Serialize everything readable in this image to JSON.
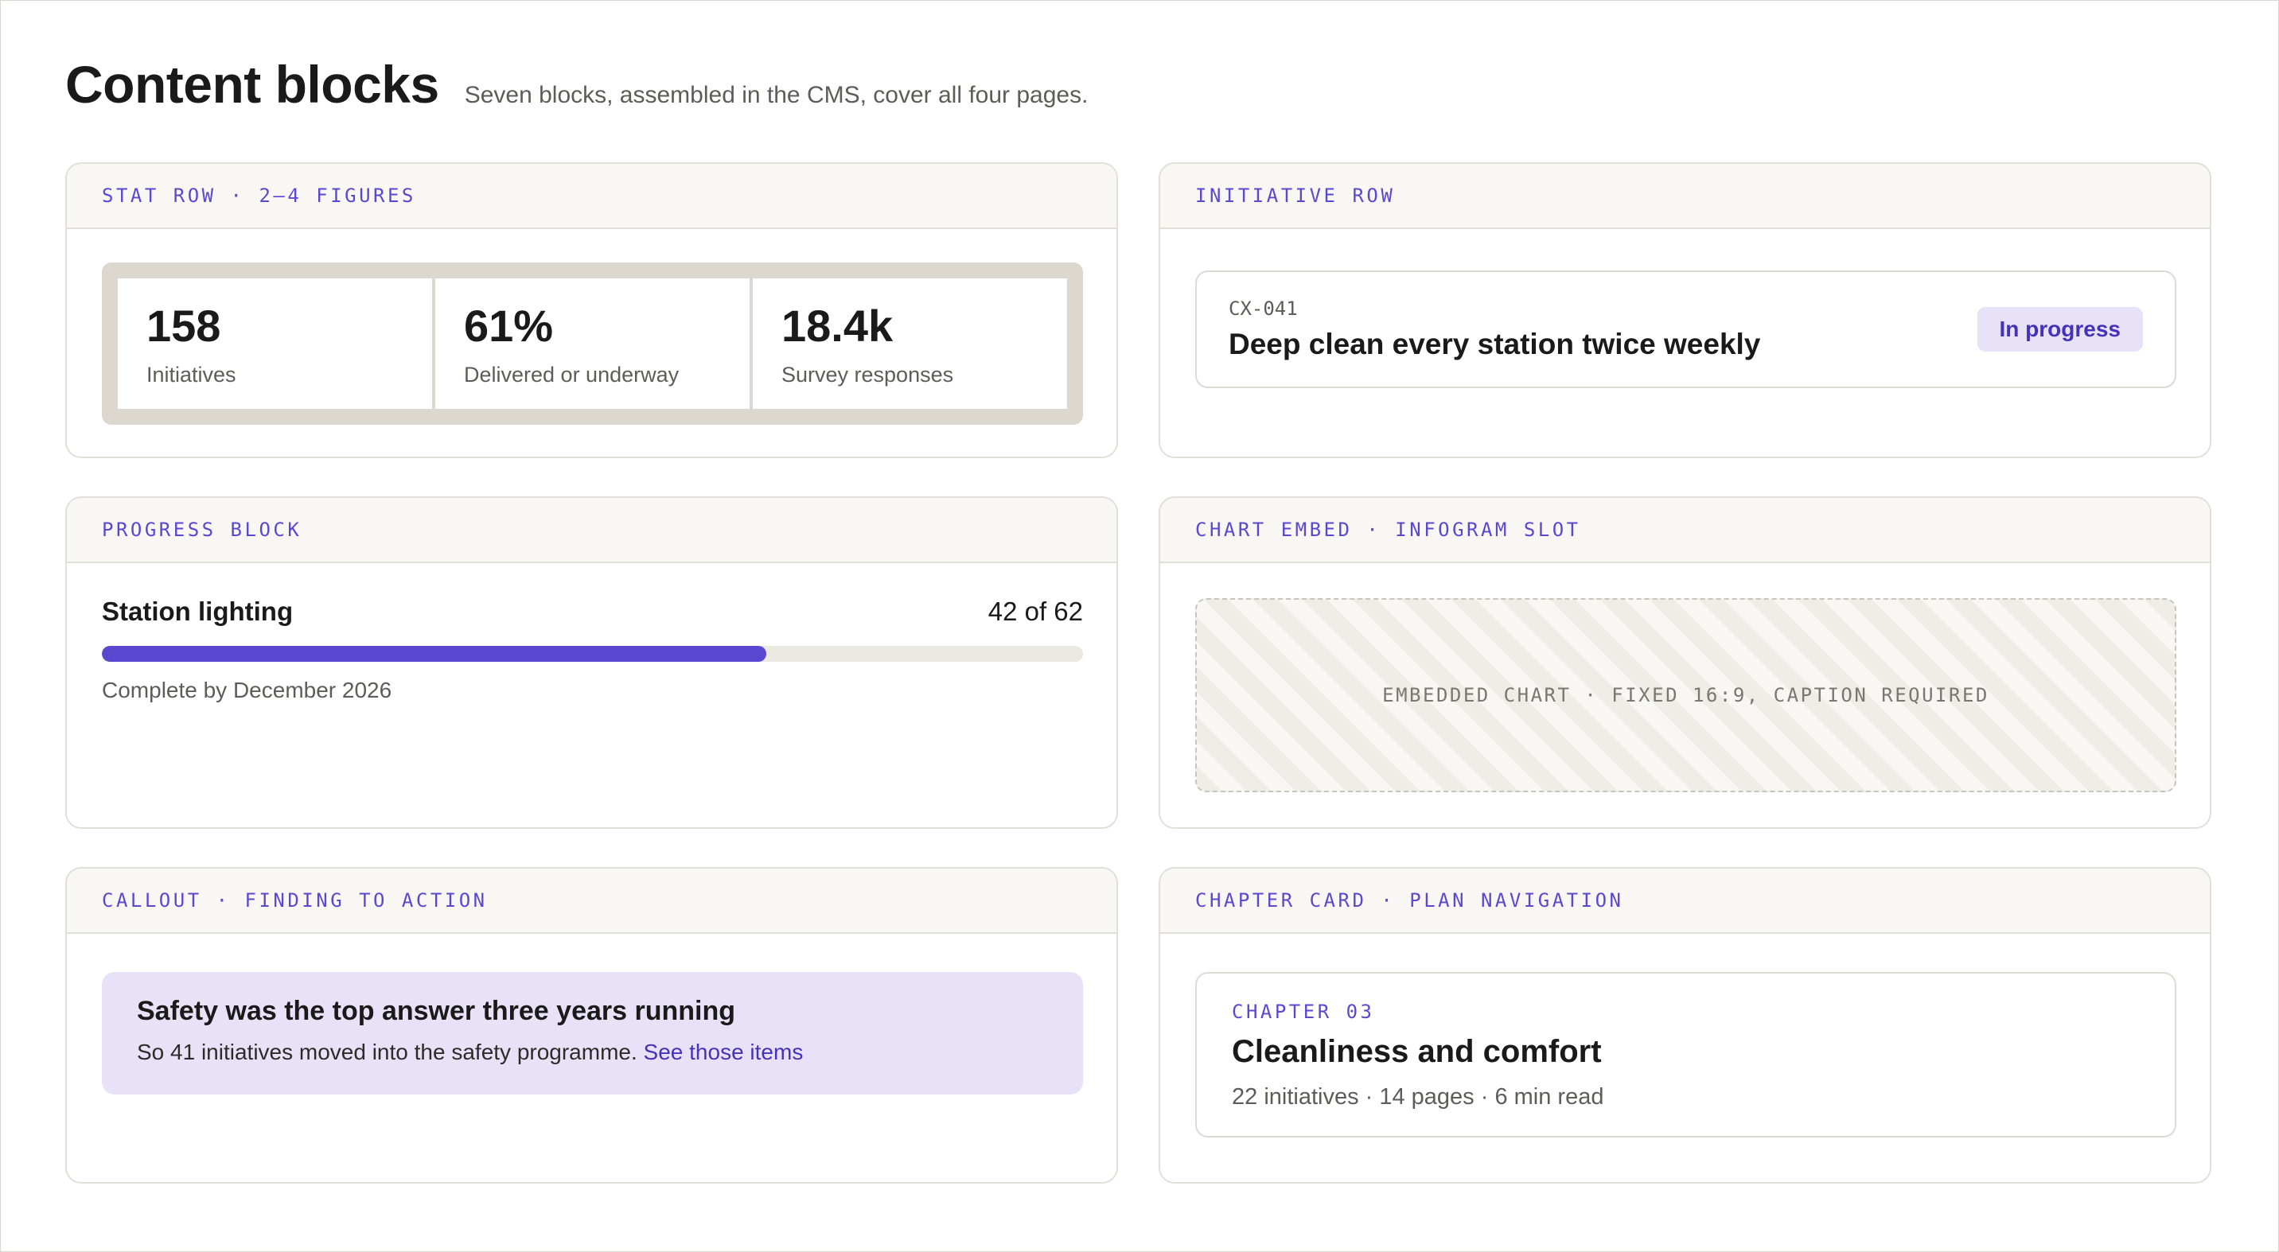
{
  "header": {
    "title": "Content blocks",
    "subtitle": "Seven blocks, assembled in the CMS, cover all four pages."
  },
  "stat_row": {
    "label": "STAT ROW · 2–4 FIGURES",
    "stats": [
      {
        "value": "158",
        "label": "Initiatives"
      },
      {
        "value": "61%",
        "label": "Delivered or underway"
      },
      {
        "value": "18.4k",
        "label": "Survey responses"
      }
    ]
  },
  "initiative_row": {
    "label": "INITIATIVE ROW",
    "code": "CX-041",
    "title": "Deep clean every station twice weekly",
    "status": "In progress"
  },
  "progress_block": {
    "label": "PROGRESS BLOCK",
    "title": "Station lighting",
    "count_text": "42 of 62",
    "done": 42,
    "total": 62,
    "note": "Complete by December 2026"
  },
  "chart_embed": {
    "label": "CHART EMBED · INFOGRAM SLOT",
    "placeholder": "EMBEDDED CHART · FIXED 16:9, CAPTION REQUIRED"
  },
  "callout": {
    "label": "CALLOUT · FINDING TO ACTION",
    "title": "Safety was the top answer three years running",
    "body": "So 41 initiatives moved into the safety programme.",
    "link": "See those items"
  },
  "chapter_card": {
    "label": "CHAPTER CARD · PLAN NAVIGATION",
    "chapter": "CHAPTER 03",
    "title": "Cleanliness and comfort",
    "meta": "22 initiatives · 14 pages · 6 min read"
  },
  "colors": {
    "accent": "#5b48d0",
    "accent_soft": "#e7e2f8",
    "header_bg": "#f8f7f3",
    "border": "#e2dfd9"
  }
}
